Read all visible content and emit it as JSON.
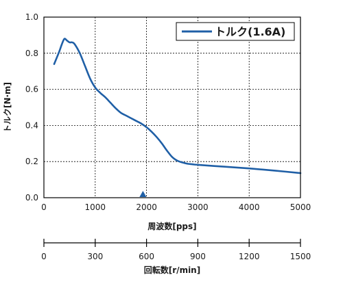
{
  "chart_data": {
    "type": "line",
    "ylabel": "トルク[N·m]",
    "xlabel": "周波数[pps]",
    "secondary_xlabel": "回転数[r/min]",
    "xlim": [
      0,
      5000
    ],
    "ylim": [
      0.0,
      1.0
    ],
    "grid": true,
    "legend_position": "top-right",
    "x_ticks": [
      "0",
      "1000",
      "2000",
      "3000",
      "4000",
      "5000"
    ],
    "y_ticks": [
      "0.0",
      "0.2",
      "0.4",
      "0.6",
      "0.8",
      "1.0"
    ],
    "secondary_x_ticks": [
      "0",
      "300",
      "600",
      "900",
      "1200",
      "1500"
    ],
    "secondary_xlim": [
      0,
      1500
    ],
    "marker_x": 1930,
    "series": [
      {
        "name": "トルク(1.6A)",
        "color": "#1f5fa6",
        "x": [
          200,
          300,
          350,
          400,
          450,
          500,
          550,
          600,
          700,
          800,
          900,
          1000,
          1100,
          1200,
          1300,
          1400,
          1500,
          1600,
          1700,
          1800,
          1900,
          2000,
          2100,
          2200,
          2300,
          2400,
          2500,
          2600,
          2700,
          2800,
          2900,
          3000,
          3500,
          4000,
          4500,
          5000
        ],
        "values": [
          0.74,
          0.81,
          0.85,
          0.88,
          0.87,
          0.86,
          0.86,
          0.85,
          0.8,
          0.73,
          0.66,
          0.61,
          0.58,
          0.555,
          0.525,
          0.495,
          0.47,
          0.455,
          0.44,
          0.425,
          0.41,
          0.39,
          0.365,
          0.335,
          0.3,
          0.26,
          0.225,
          0.205,
          0.195,
          0.188,
          0.185,
          0.182,
          0.172,
          0.162,
          0.15,
          0.136
        ]
      }
    ]
  }
}
